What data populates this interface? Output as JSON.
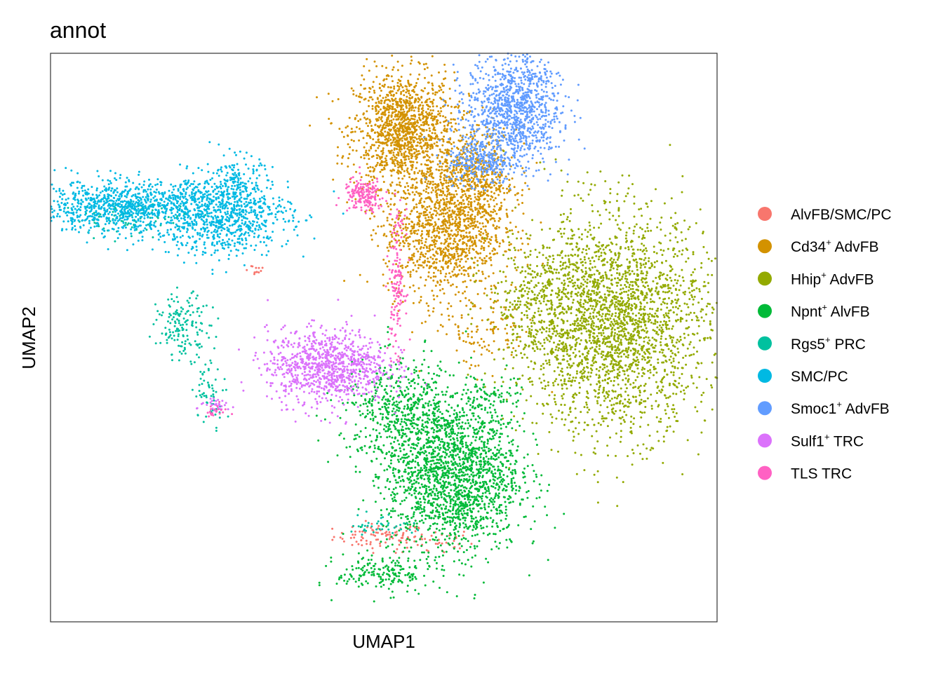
{
  "chart_data": {
    "type": "scatter",
    "title": "annot",
    "xlabel": "UMAP1",
    "ylabel": "UMAP2",
    "xlim": [
      -10,
      10
    ],
    "ylim": [
      -10,
      10
    ],
    "grid": false,
    "legend_position": "right",
    "ticks": "none",
    "series": [
      {
        "name": "AlvFB/SMC/PC",
        "label_parts": [
          "AlvFB/SMC/PC",
          "",
          ""
        ],
        "color": "#F8766D",
        "clusters": [
          {
            "cx": -0.1,
            "cy": -7.0,
            "sx": 0.7,
            "sy": 0.22,
            "n": 90
          },
          {
            "cx": 1.5,
            "cy": -7.2,
            "sx": 0.6,
            "sy": 0.25,
            "n": 40
          },
          {
            "cx": -3.9,
            "cy": 2.4,
            "sx": 0.2,
            "sy": 0.1,
            "n": 12
          }
        ]
      },
      {
        "name": "Cd34+ AdvFB",
        "label_parts": [
          "Cd34",
          "+",
          " AdvFB"
        ],
        "color": "#D39200",
        "clusters": [
          {
            "cx": 0.6,
            "cy": 7.3,
            "sx": 0.75,
            "sy": 1.0,
            "n": 1300
          },
          {
            "cx": 1.8,
            "cy": 3.8,
            "sx": 0.9,
            "sy": 1.2,
            "n": 1200
          },
          {
            "cx": 2.8,
            "cy": 5.6,
            "sx": 0.6,
            "sy": 0.9,
            "n": 500
          },
          {
            "cx": 3.0,
            "cy": 0.2,
            "sx": 0.8,
            "sy": 0.7,
            "n": 120
          }
        ]
      },
      {
        "name": "Hhip+ AdvFB",
        "label_parts": [
          "Hhip",
          "+",
          " AdvFB"
        ],
        "color": "#93AA00",
        "clusters": [
          {
            "cx": 6.9,
            "cy": 0.5,
            "sx": 1.4,
            "sy": 1.9,
            "n": 2600
          },
          {
            "cx": 4.5,
            "cy": 1.2,
            "sx": 0.7,
            "sy": 1.0,
            "n": 250
          }
        ]
      },
      {
        "name": "Npnt+ AlvFB",
        "label_parts": [
          "Npnt",
          "+",
          " AlvFB"
        ],
        "color": "#00BA38",
        "clusters": [
          {
            "cx": 2.1,
            "cy": -4.8,
            "sx": 1.0,
            "sy": 1.4,
            "n": 1900
          },
          {
            "cx": 0.5,
            "cy": -2.6,
            "sx": 0.9,
            "sy": 0.9,
            "n": 500
          },
          {
            "cx": 0.0,
            "cy": -8.3,
            "sx": 0.7,
            "sy": 0.35,
            "n": 180
          },
          {
            "cx": 3.3,
            "cy": -2.2,
            "sx": 0.4,
            "sy": 0.4,
            "n": 60
          }
        ]
      },
      {
        "name": "Rgs5+ PRC",
        "label_parts": [
          "Rgs5",
          "+",
          " PRC"
        ],
        "color": "#00C19F",
        "clusters": [
          {
            "cx": -6.0,
            "cy": 0.4,
            "sx": 0.4,
            "sy": 0.55,
            "n": 160
          },
          {
            "cx": -7.5,
            "cy": 4.2,
            "sx": 0.9,
            "sy": 0.3,
            "n": 90
          },
          {
            "cx": -5.2,
            "cy": -1.9,
            "sx": 0.25,
            "sy": 0.55,
            "n": 60
          },
          {
            "cx": -0.1,
            "cy": -6.6,
            "sx": 0.5,
            "sy": 0.2,
            "n": 40
          }
        ]
      },
      {
        "name": "SMC/PC",
        "label_parts": [
          "SMC/PC",
          "",
          ""
        ],
        "color": "#00B9E3",
        "clusters": [
          {
            "cx": -7.8,
            "cy": 4.6,
            "sx": 1.4,
            "sy": 0.45,
            "n": 950
          },
          {
            "cx": -4.8,
            "cy": 4.3,
            "sx": 1.0,
            "sy": 0.7,
            "n": 800
          },
          {
            "cx": -4.4,
            "cy": 5.6,
            "sx": 0.35,
            "sy": 0.4,
            "n": 120
          }
        ]
      },
      {
        "name": "Smoc1+ AdvFB",
        "label_parts": [
          "Smoc1",
          "+",
          " AdvFB"
        ],
        "color": "#619CFF",
        "clusters": [
          {
            "cx": 3.9,
            "cy": 8.0,
            "sx": 0.7,
            "sy": 1.0,
            "n": 1100
          },
          {
            "cx": 2.9,
            "cy": 6.2,
            "sx": 0.5,
            "sy": 0.4,
            "n": 250
          }
        ]
      },
      {
        "name": "Sulf1+ TRC",
        "label_parts": [
          "Sulf1",
          "+",
          " TRC"
        ],
        "color": "#DB72FB",
        "clusters": [
          {
            "cx": -1.7,
            "cy": -1.0,
            "sx": 0.9,
            "sy": 0.65,
            "n": 950
          },
          {
            "cx": -5.0,
            "cy": -2.4,
            "sx": 0.3,
            "sy": 0.1,
            "n": 30
          }
        ]
      },
      {
        "name": "TLS TRC",
        "label_parts": [
          "TLS TRC",
          "",
          ""
        ],
        "color": "#FF61C3",
        "clusters": [
          {
            "cx": -0.6,
            "cy": 5.0,
            "sx": 0.3,
            "sy": 0.3,
            "n": 170
          },
          {
            "cx": 0.4,
            "cy": 2.0,
            "sx": 0.12,
            "sy": 1.2,
            "n": 150
          },
          {
            "cx": -5.1,
            "cy": -2.6,
            "sx": 0.2,
            "sy": 0.12,
            "n": 20
          }
        ]
      }
    ]
  }
}
